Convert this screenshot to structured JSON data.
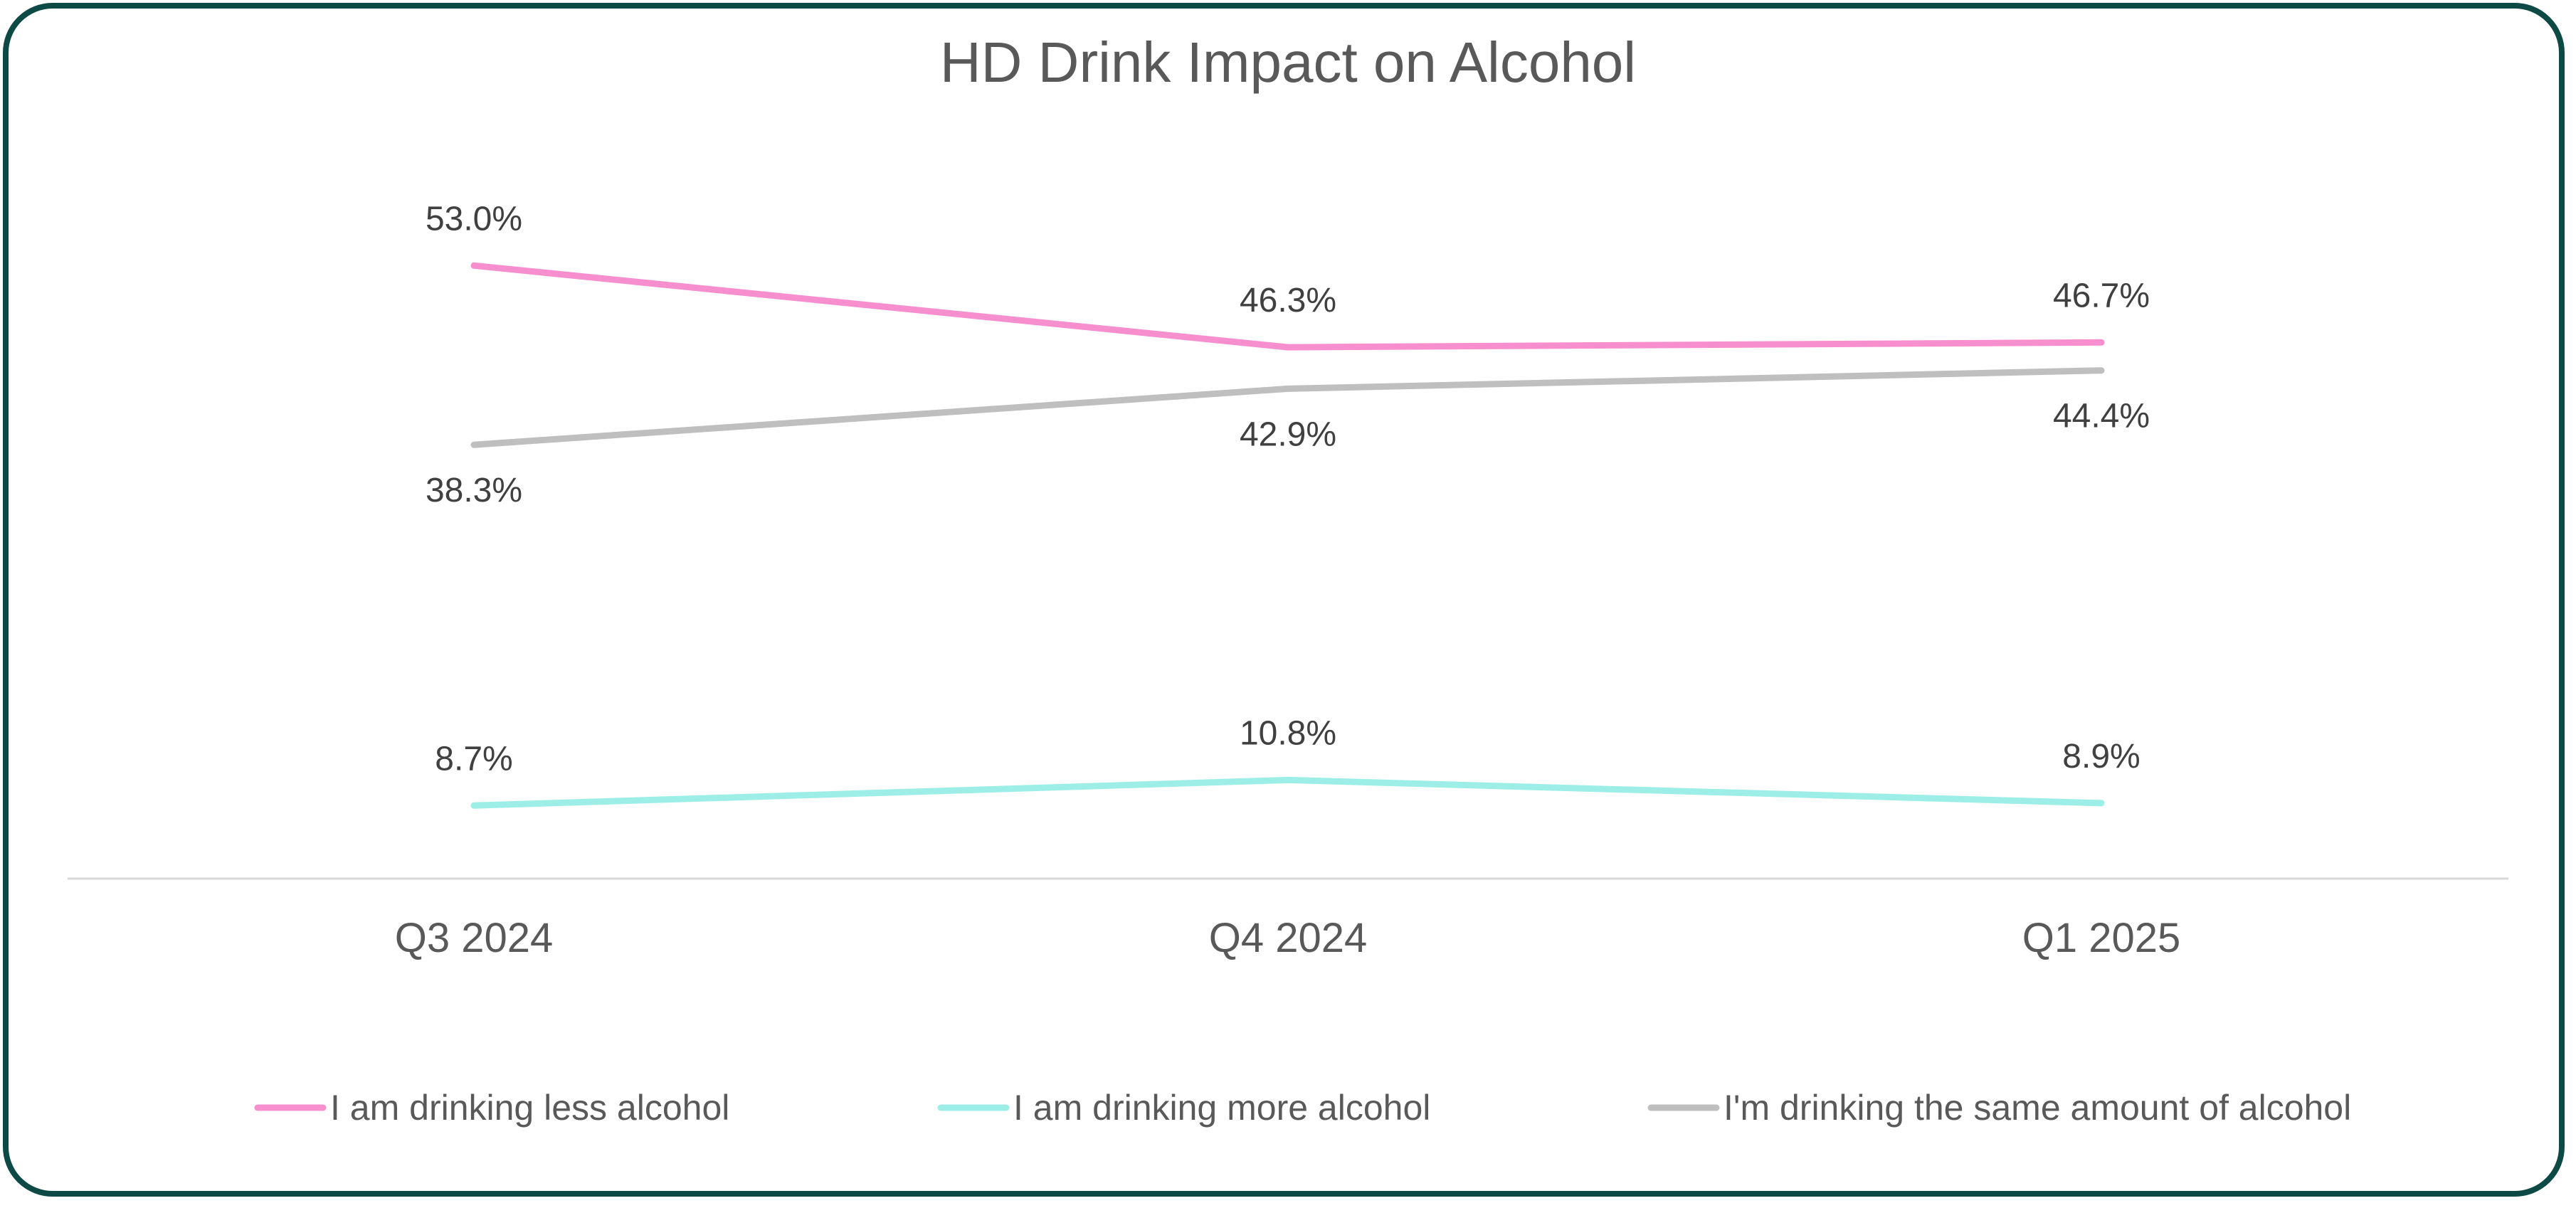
{
  "chart_data": {
    "type": "line",
    "title": "HD Drink Impact on Alcohol",
    "xlabel": "",
    "ylabel": "",
    "categories": [
      "Q3 2024",
      "Q4 2024",
      "Q1 2025"
    ],
    "ylim": [
      0,
      60
    ],
    "grid": false,
    "legend": "bottom",
    "series": [
      {
        "name": "I am drinking less alcohol",
        "values": [
          53.0,
          46.3,
          46.7
        ],
        "labels": [
          "53.0%",
          "46.3%",
          "46.7%"
        ],
        "color": "#f78fcf",
        "label_side": "above"
      },
      {
        "name": "I am drinking more alcohol",
        "values": [
          8.7,
          10.8,
          8.9
        ],
        "labels": [
          "8.7%",
          "10.8%",
          "8.9%"
        ],
        "color": "#9eeee8",
        "label_side": "above"
      },
      {
        "name": "I'm drinking the same amount of alcohol",
        "values": [
          38.3,
          42.9,
          44.4
        ],
        "labels": [
          "38.3%",
          "42.9%",
          "44.4%"
        ],
        "color": "#bfbfbf",
        "label_side": "below"
      }
    ]
  },
  "colors": {
    "border": "#0d4a45",
    "axis_line": "#d9d9d9",
    "text": "#595959"
  }
}
